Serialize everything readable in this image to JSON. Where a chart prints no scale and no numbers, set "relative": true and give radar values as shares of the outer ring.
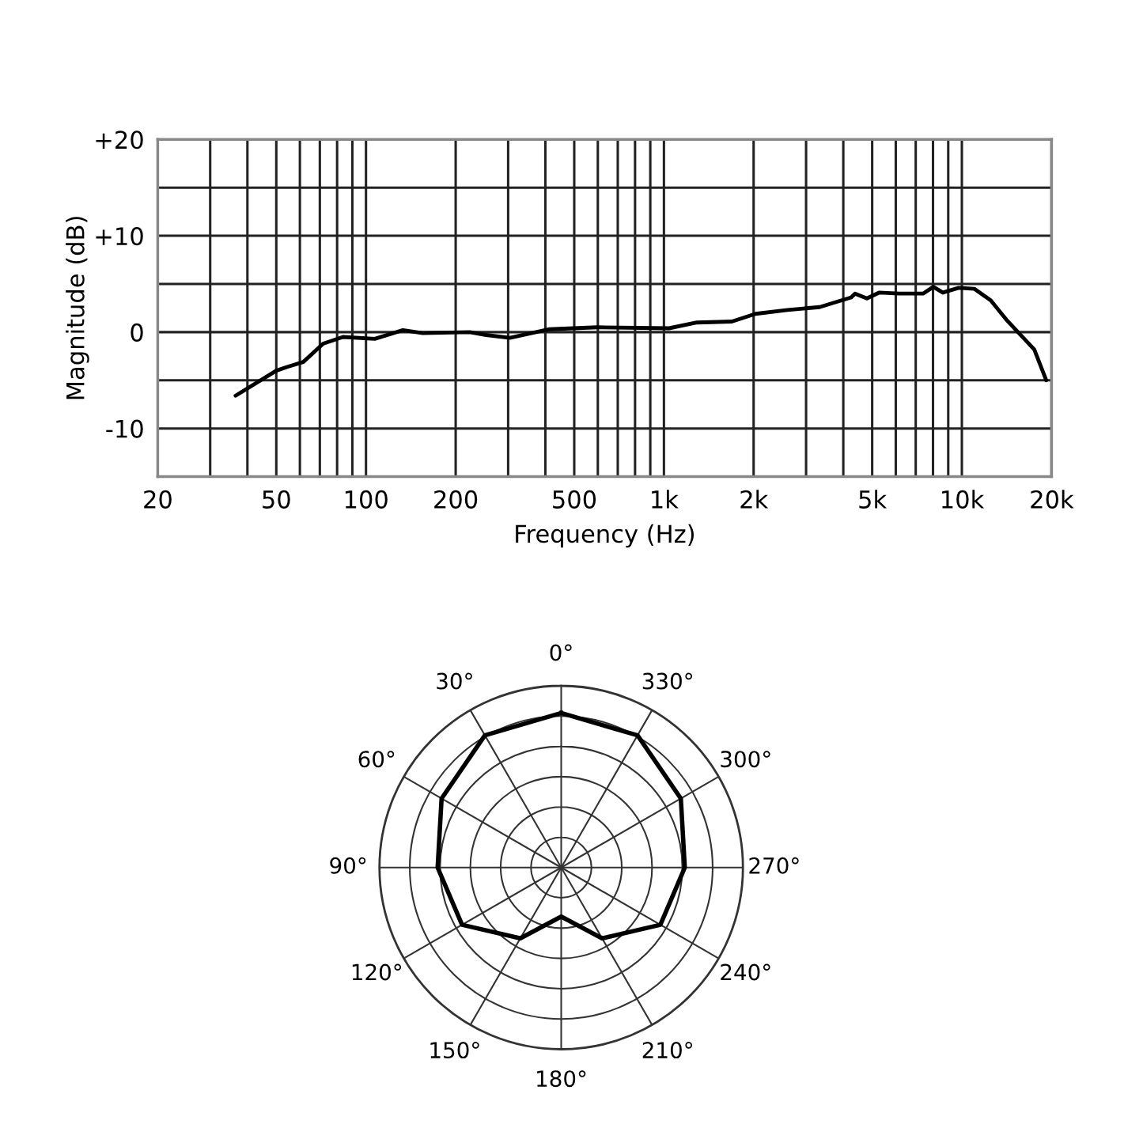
{
  "chart_data": [
    {
      "type": "line",
      "xlabel": "Frequency (Hz)",
      "ylabel": "Magnitude (dB)",
      "log": "x",
      "grid": true,
      "xlim": [
        20,
        20000
      ],
      "ylim": [
        -15,
        20
      ],
      "xticks": [
        20,
        {
          "value": 30,
          "label": null
        },
        {
          "value": 40,
          "label": null
        },
        50,
        {
          "value": 60,
          "label": null
        },
        {
          "value": 70,
          "label": null
        },
        {
          "value": 80,
          "label": null
        },
        {
          "value": 90,
          "label": null
        },
        100,
        200,
        {
          "value": 300,
          "label": null
        },
        {
          "value": 400,
          "label": null
        },
        500,
        {
          "value": 600,
          "label": null
        },
        {
          "value": 700,
          "label": null
        },
        {
          "value": 800,
          "label": null
        },
        {
          "value": 900,
          "label": null
        },
        {
          "value": 1000,
          "label": "1k"
        },
        {
          "value": 2000,
          "label": "2k"
        },
        {
          "value": 3000,
          "label": null
        },
        {
          "value": 4000,
          "label": null
        },
        {
          "value": 5000,
          "label": "5k"
        },
        {
          "value": 6000,
          "label": null
        },
        {
          "value": 7000,
          "label": null
        },
        {
          "value": 8000,
          "label": null
        },
        {
          "value": 9000,
          "label": null
        },
        {
          "value": 10000,
          "label": "10k"
        },
        {
          "value": 20000,
          "label": "20k"
        }
      ],
      "yticks": [
        {
          "value": 20,
          "label": "+20"
        },
        {
          "value": 15,
          "label": null
        },
        {
          "value": 10,
          "label": "+10"
        },
        {
          "value": 5,
          "label": null
        },
        0,
        {
          "value": -5,
          "label": null
        },
        -10
      ],
      "series": [
        {
          "color": "#000000",
          "x": [
            36.5,
            50,
            54.5,
            61.6,
            71.8,
            83.7,
            107,
            133,
            155,
            223,
            253,
            304,
            413,
            597,
            1040,
            1290,
            1690,
            2030,
            2600,
            3330,
            4250,
            4380,
            4800,
            5270,
            6160,
            6970,
            7410,
            8020,
            8630,
            9760,
            11000,
            12500,
            14100,
            17500,
            19200
          ],
          "values": [
            -6.6,
            -4.0,
            -3.6,
            -3.1,
            -1.2,
            -0.5,
            -0.7,
            0.2,
            -0.1,
            0,
            -0.3,
            -0.6,
            0.3,
            0.5,
            0.4,
            1.0,
            1.1,
            1.9,
            2.3,
            2.6,
            3.6,
            4.0,
            3.5,
            4.1,
            4.0,
            4.0,
            4.0,
            4.7,
            4.1,
            4.6,
            4.5,
            3.3,
            1.3,
            -1.8,
            -5.0
          ]
        }
      ]
    },
    {
      "type": "radar",
      "relative": true,
      "categories": [
        "0°",
        "330°",
        "300°",
        "270°",
        "240°",
        "210°",
        "180°",
        "150°",
        "120°",
        "90°",
        "60°",
        "30°"
      ],
      "series": [
        {
          "color": "#000000",
          "values": [
            0.85,
            0.84,
            0.76,
            0.68,
            0.63,
            0.45,
            0.27,
            0.45,
            0.63,
            0.68,
            0.76,
            0.84
          ]
        }
      ]
    }
  ]
}
